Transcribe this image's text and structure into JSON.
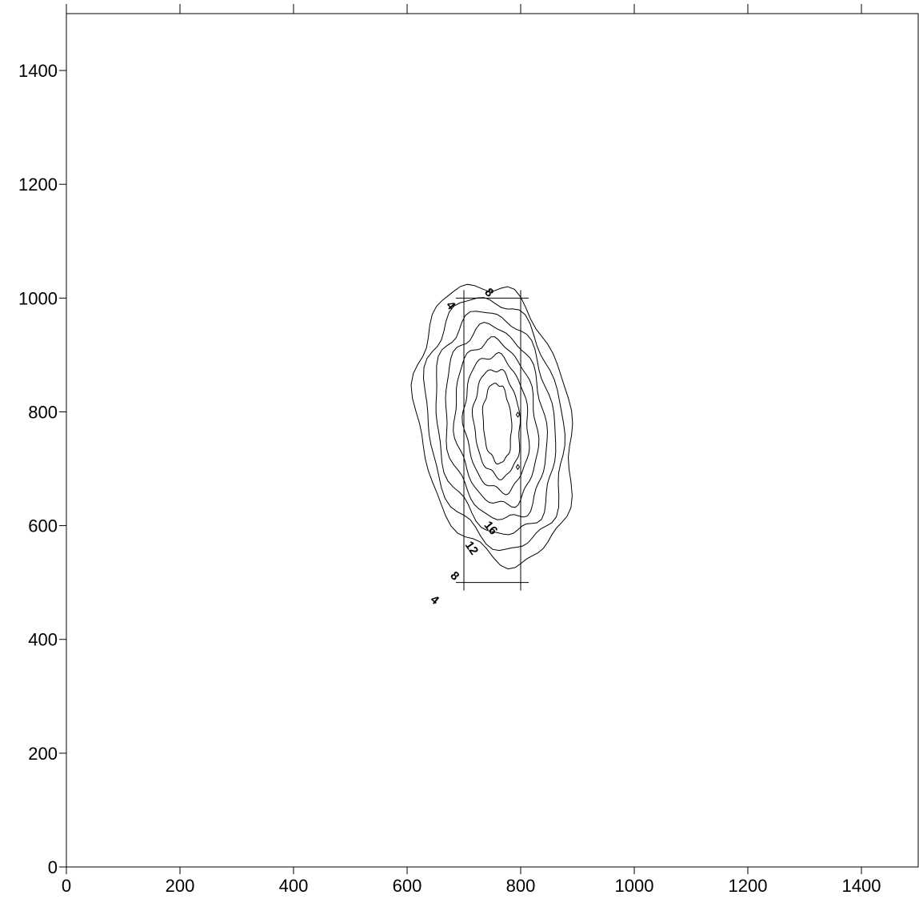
{
  "chart_data": {
    "type": "contour",
    "title": "",
    "xlabel": "",
    "ylabel": "",
    "xlim": [
      0,
      1500
    ],
    "ylim": [
      0,
      1500
    ],
    "x_ticks": [
      0,
      200,
      400,
      600,
      800,
      1000,
      1200,
      1400
    ],
    "y_ticks": [
      0,
      200,
      400,
      600,
      800,
      1000,
      1200,
      1400
    ],
    "x_tick_labels": [
      "0",
      "200",
      "400",
      "600",
      "800",
      "1000",
      "1200",
      "1400"
    ],
    "y_tick_labels": [
      "0",
      "200",
      "400",
      "600",
      "800",
      "1000",
      "1200",
      "1400"
    ],
    "grid": false,
    "contour_interval": 2,
    "contour_levels": [
      4,
      6,
      8,
      10,
      12,
      14,
      16,
      18
    ],
    "labeled_levels": [
      "4",
      "8",
      "12",
      "16",
      "4",
      "8"
    ],
    "contour_center": [
      760,
      760
    ],
    "rectangle": {
      "x": [
        700,
        800
      ],
      "y": [
        500,
        1000
      ]
    },
    "markers": [
      [
        795,
        795
      ],
      [
        795,
        703
      ]
    ]
  }
}
